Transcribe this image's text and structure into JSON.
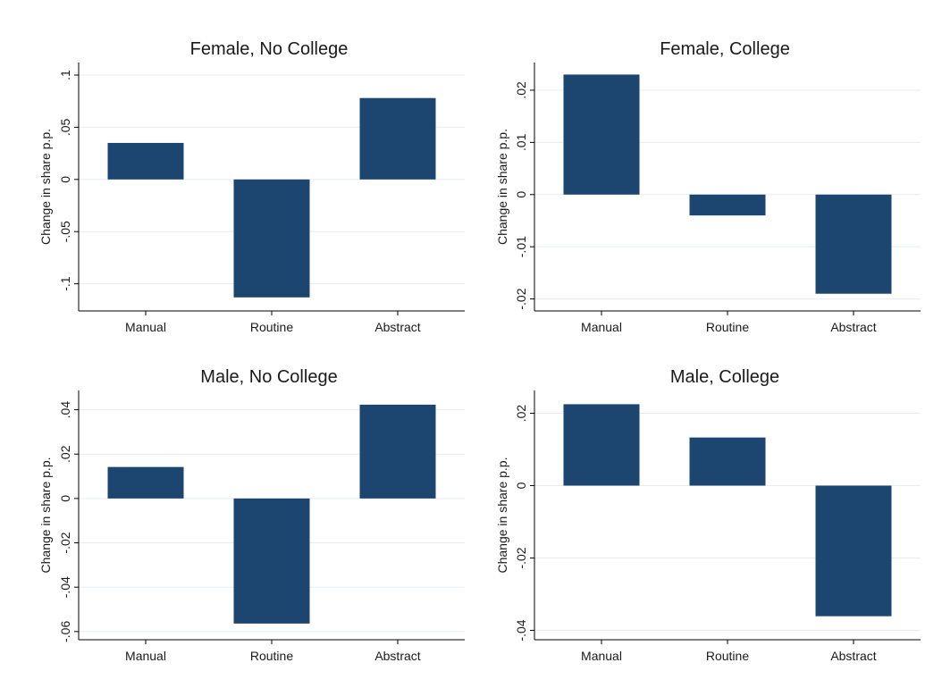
{
  "colors": {
    "bar": "#1c466f",
    "grid": "#e8ecef",
    "axis": "#000000",
    "background": "#ffffff"
  },
  "chart_data": [
    {
      "type": "bar",
      "title": "Female, No College",
      "ylabel": "Change in share p.p.",
      "xlabel": "",
      "categories": [
        "Manual",
        "Routine",
        "Abstract"
      ],
      "values": [
        0.035,
        -0.113,
        0.078
      ],
      "ylim": [
        -0.126,
        0.112
      ],
      "yticks": [
        0.1,
        0.05,
        0,
        -0.05,
        -0.1
      ],
      "ytick_labels": [
        ".1",
        ".05",
        "0",
        "-.05",
        "-.1"
      ],
      "grid": true
    },
    {
      "type": "bar",
      "title": "Female, College",
      "ylabel": "Change in share p.p.",
      "xlabel": "",
      "categories": [
        "Manual",
        "Routine",
        "Abstract"
      ],
      "values": [
        0.023,
        -0.004,
        -0.019
      ],
      "ylim": [
        -0.0223,
        0.0253
      ],
      "yticks": [
        0.02,
        0.01,
        0,
        -0.01,
        -0.02
      ],
      "ytick_labels": [
        ".02",
        ".01",
        "0",
        "-.01",
        "-.02"
      ],
      "grid": true
    },
    {
      "type": "bar",
      "title": "Male, No College",
      "ylabel": "Change in share p.p.",
      "xlabel": "",
      "categories": [
        "Manual",
        "Routine",
        "Abstract"
      ],
      "values": [
        0.0142,
        -0.0564,
        0.0423
      ],
      "ylim": [
        -0.0637,
        0.0487
      ],
      "yticks": [
        0.04,
        0.02,
        0,
        -0.02,
        -0.04,
        -0.06
      ],
      "ytick_labels": [
        ".04",
        ".02",
        "0",
        "-.02",
        "-.04",
        "-.06"
      ],
      "grid": true
    },
    {
      "type": "bar",
      "title": "Male,  College",
      "ylabel": "Change in share p.p.",
      "xlabel": "",
      "categories": [
        "Manual",
        "Routine",
        "Abstract"
      ],
      "values": [
        0.0225,
        0.0133,
        -0.0361
      ],
      "ylim": [
        -0.0426,
        0.0263
      ],
      "yticks": [
        0.02,
        0,
        -0.02,
        -0.04
      ],
      "ytick_labels": [
        ".02",
        "0",
        "-.02",
        "-.04"
      ],
      "grid": true
    }
  ]
}
